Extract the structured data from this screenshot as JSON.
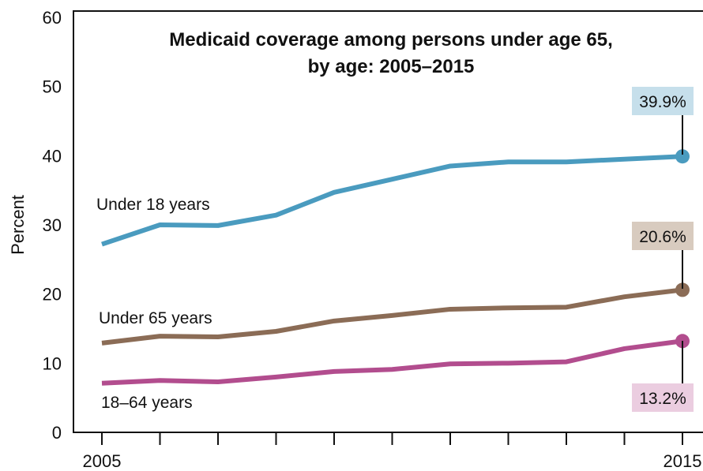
{
  "chart_data": {
    "type": "line",
    "title_line1": "Medicaid coverage among persons under age 65,",
    "title_line2": "by age: 2005–2015",
    "ylabel": "Percent",
    "xlabel": "",
    "x": [
      2005,
      2006,
      2007,
      2008,
      2009,
      2010,
      2011,
      2012,
      2013,
      2014,
      2015
    ],
    "x_tick_labels": [
      "2005",
      "2015"
    ],
    "ylim": [
      0,
      60
    ],
    "yticks": [
      0,
      10,
      20,
      30,
      40,
      50,
      60
    ],
    "grid": false,
    "series": [
      {
        "name": "Under 18 years",
        "color": "#4a9bbf",
        "values": [
          27.2,
          30.0,
          29.9,
          31.4,
          34.7,
          36.6,
          38.5,
          39.1,
          39.1,
          39.5,
          39.9
        ],
        "end_label": "39.9%",
        "end_label_bg": "#c6dfeb"
      },
      {
        "name": "Under 65 years",
        "color": "#8b6c56",
        "values": [
          12.9,
          13.9,
          13.8,
          14.6,
          16.1,
          16.9,
          17.8,
          18.0,
          18.1,
          19.6,
          20.6
        ],
        "end_label": "20.6%",
        "end_label_bg": "#d8cbbf"
      },
      {
        "name": "18–64 years",
        "color": "#b24d8e",
        "values": [
          7.1,
          7.5,
          7.3,
          8.0,
          8.8,
          9.1,
          9.9,
          10.0,
          10.2,
          12.1,
          13.2
        ],
        "end_label": "13.2%",
        "end_label_bg": "#ebcde0"
      }
    ]
  }
}
